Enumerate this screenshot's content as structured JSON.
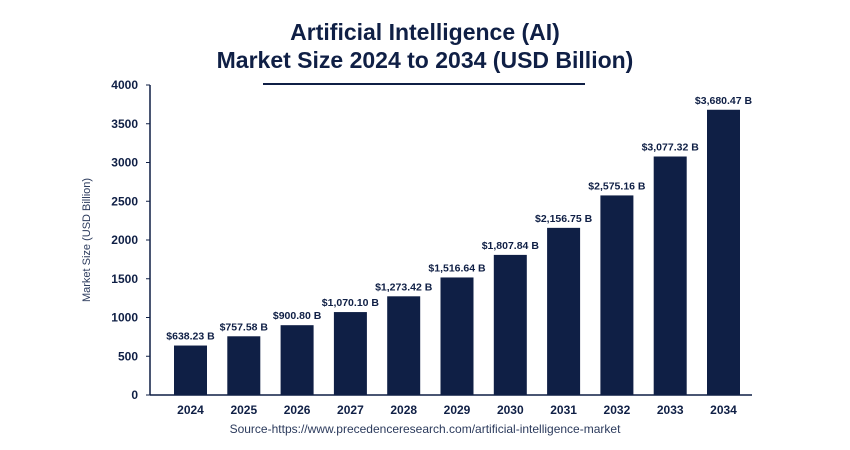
{
  "chart_data": {
    "type": "bar",
    "title": "Artificial Intelligence (AI)",
    "subtitle": "Market Size 2024 to 2034 (USD Billion)",
    "xlabel": "",
    "ylabel": "Market Size (USD Billion)",
    "categories": [
      "2024",
      "2025",
      "2026",
      "2027",
      "2028",
      "2029",
      "2030",
      "2031",
      "2032",
      "2033",
      "2034"
    ],
    "values": [
      638.23,
      757.58,
      900.8,
      1070.1,
      1273.42,
      1516.64,
      1807.84,
      2156.75,
      2575.16,
      3077.32,
      3680.47
    ],
    "data_labels": [
      "$638.23 B",
      "$757.58 B",
      "$900.80 B",
      "$1,070.10 B",
      "$1,273.42 B",
      "$1,516.64 B",
      "$1,807.84 B",
      "$2,156.75 B",
      "$2,575.16 B",
      "$3,077.32 B",
      "$3,680.47 B"
    ],
    "ylim": [
      0,
      4000
    ],
    "yticks": [
      0,
      500,
      1000,
      1500,
      2000,
      2500,
      3000,
      3500,
      4000
    ],
    "grid": false,
    "bar_color": "#0f1f45",
    "source": "Source-https://www.precedenceresearch.com/artificial-intelligence-market"
  }
}
